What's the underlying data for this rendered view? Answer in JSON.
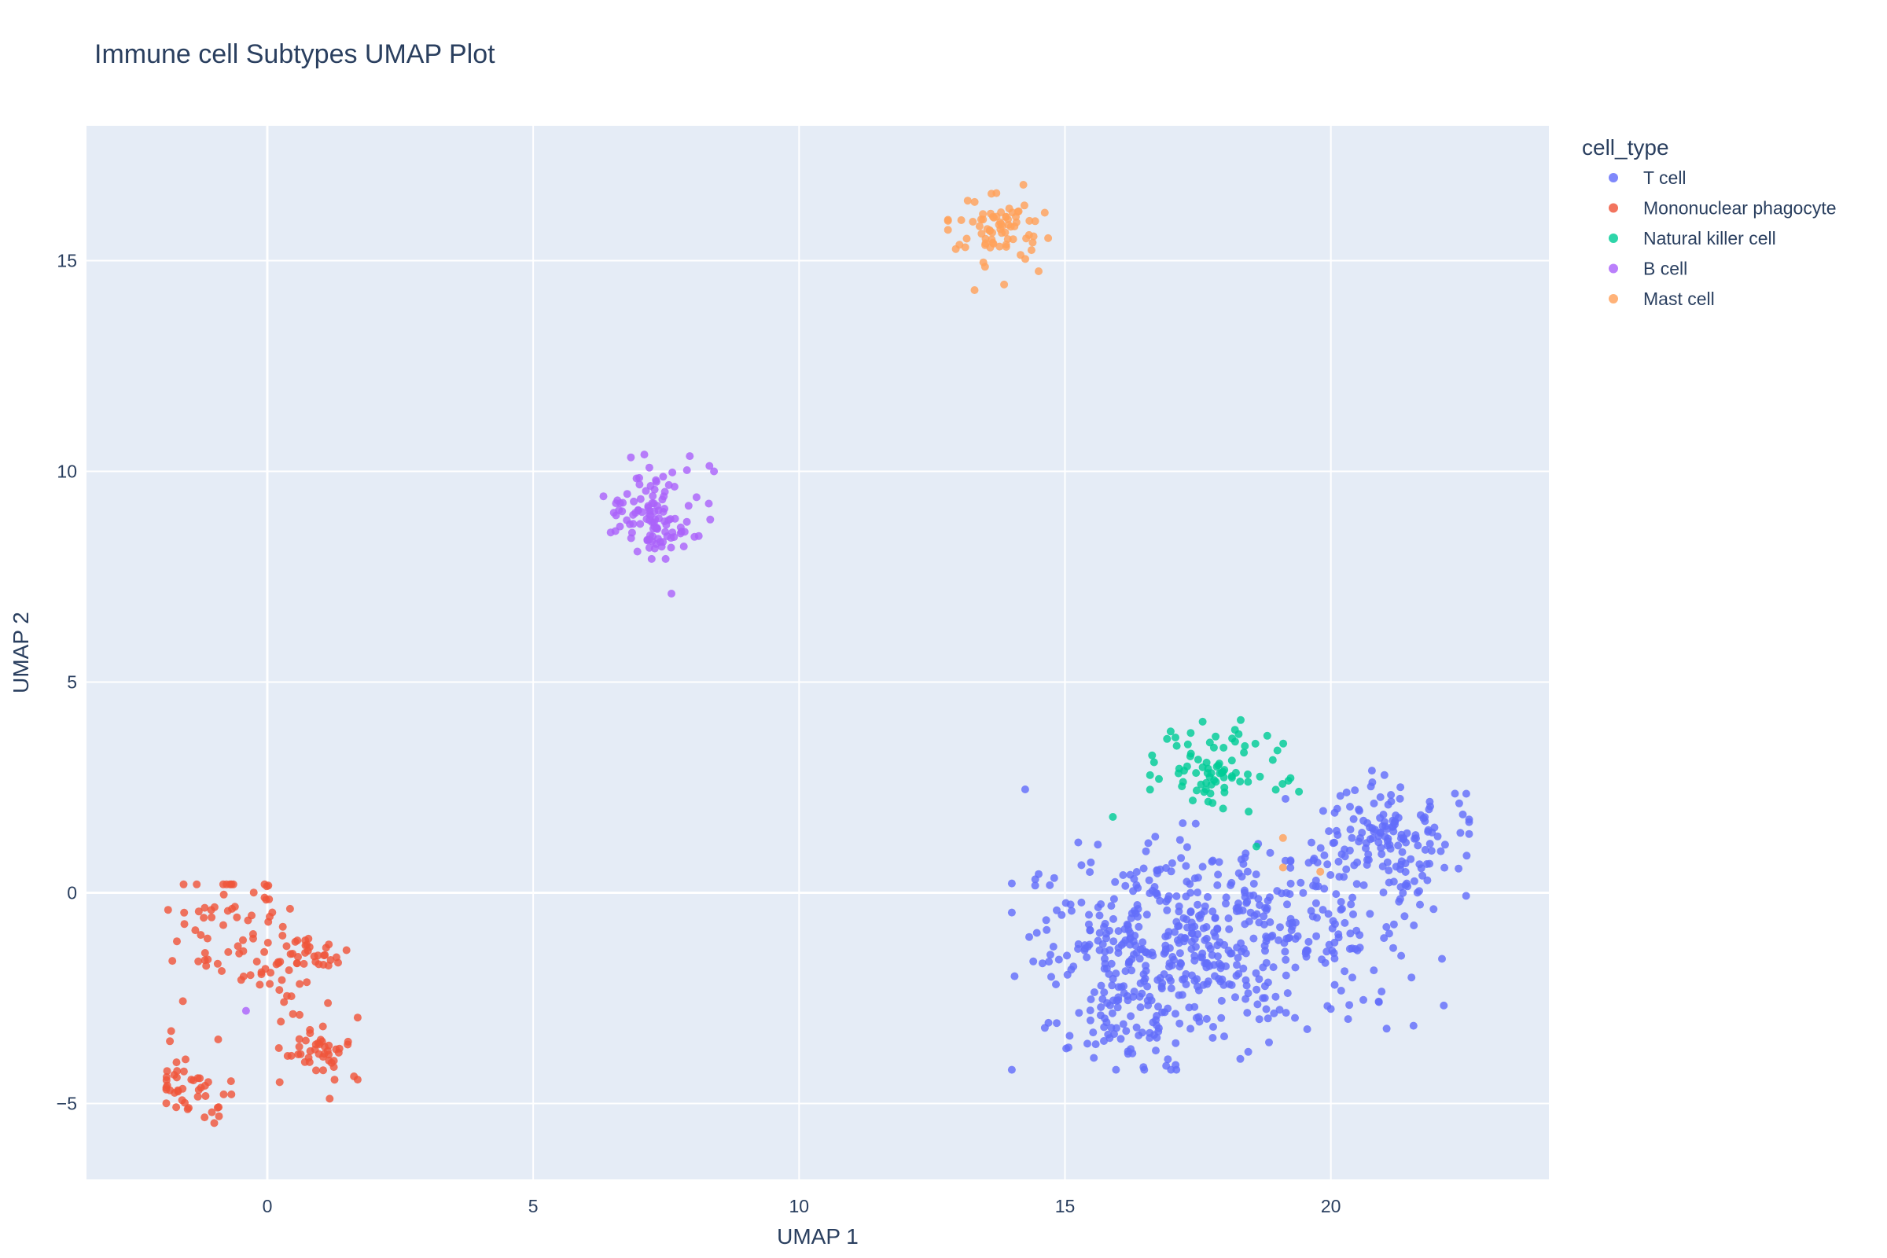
{
  "chart_data": {
    "type": "scatter",
    "title": "Immune cell Subtypes UMAP Plot",
    "xlabel": "UMAP 1",
    "ylabel": "UMAP 2",
    "xlim": [
      -3.4,
      24.1
    ],
    "ylim": [
      -6.8,
      18.2
    ],
    "x_ticks": [
      0,
      5,
      10,
      15,
      20
    ],
    "y_ticks": [
      -5,
      0,
      5,
      10,
      15
    ],
    "x_tick_labels": [
      "0",
      "5",
      "10",
      "15",
      "20"
    ],
    "y_tick_labels": [
      "−5",
      "0",
      "5",
      "10",
      "15"
    ],
    "grid": true,
    "legend": {
      "title": "cell_type",
      "position": "top-right-outside"
    },
    "series": [
      {
        "name": "T cell",
        "color": "#636efa",
        "count": 760,
        "clusters": [
          {
            "center": [
              16.8,
              -1.4
            ],
            "spread": [
              1.3,
              1.25
            ],
            "n": 400
          },
          {
            "center": [
              19.2,
              -0.9
            ],
            "spread": [
              1.1,
              1.0
            ],
            "n": 170
          },
          {
            "center": [
              21.1,
              1.2
            ],
            "spread": [
              0.8,
              0.7
            ],
            "n": 160
          },
          {
            "center": [
              15.8,
              -3.3
            ],
            "spread": [
              0.6,
              0.5
            ],
            "n": 30
          }
        ],
        "extent": {
          "x": [
            14.0,
            22.6
          ],
          "y": [
            -4.2,
            2.9
          ]
        }
      },
      {
        "name": "Mononuclear phagocyte",
        "color": "#ef553b",
        "count": 205,
        "clusters": [
          {
            "center": [
              -1.4,
              -4.6
            ],
            "spread": [
              0.45,
              0.45
            ],
            "n": 45
          },
          {
            "center": [
              -0.6,
              -0.4
            ],
            "spread": [
              0.6,
              0.4
            ],
            "n": 40
          },
          {
            "center": [
              1.0,
              -3.7
            ],
            "spread": [
              0.4,
              0.5
            ],
            "n": 50
          },
          {
            "center": [
              -0.2,
              -1.7
            ],
            "spread": [
              0.8,
              0.4
            ],
            "n": 45
          },
          {
            "center": [
              1.0,
              -1.5
            ],
            "spread": [
              0.3,
              0.2
            ],
            "n": 25
          }
        ],
        "extent": {
          "x": [
            -1.9,
            1.7
          ],
          "y": [
            -5.5,
            0.2
          ]
        }
      },
      {
        "name": "Natural killer cell",
        "color": "#00cc96",
        "count": 80,
        "clusters": [
          {
            "center": [
              17.8,
              3.0
            ],
            "spread": [
              0.6,
              0.5
            ],
            "n": 80
          }
        ],
        "extent": {
          "x": [
            16.6,
            19.4
          ],
          "y": [
            1.1,
            4.1
          ]
        },
        "outliers": [
          [
            15.9,
            1.8
          ],
          [
            19.4,
            2.4
          ],
          [
            18.6,
            1.1
          ]
        ]
      },
      {
        "name": "B cell",
        "color": "#ab63fa",
        "count": 110,
        "clusters": [
          {
            "center": [
              7.3,
              9.0
            ],
            "spread": [
              0.45,
              0.65
            ],
            "n": 110
          }
        ],
        "extent": {
          "x": [
            6.3,
            8.4
          ],
          "y": [
            7.1,
            10.4
          ]
        },
        "outliers": [
          [
            8.4,
            10.0
          ],
          [
            7.6,
            7.1
          ],
          [
            -0.4,
            -2.8
          ]
        ]
      },
      {
        "name": "Mast cell",
        "color": "#ffa15a",
        "count": 75,
        "clusters": [
          {
            "center": [
              13.8,
              15.7
            ],
            "spread": [
              0.5,
              0.45
            ],
            "n": 75
          }
        ],
        "extent": {
          "x": [
            12.8,
            14.8
          ],
          "y": [
            14.3,
            16.8
          ]
        },
        "outliers": [
          [
            19.1,
            1.3
          ],
          [
            19.1,
            0.6
          ],
          [
            19.8,
            0.5
          ],
          [
            13.3,
            14.3
          ]
        ]
      }
    ]
  }
}
